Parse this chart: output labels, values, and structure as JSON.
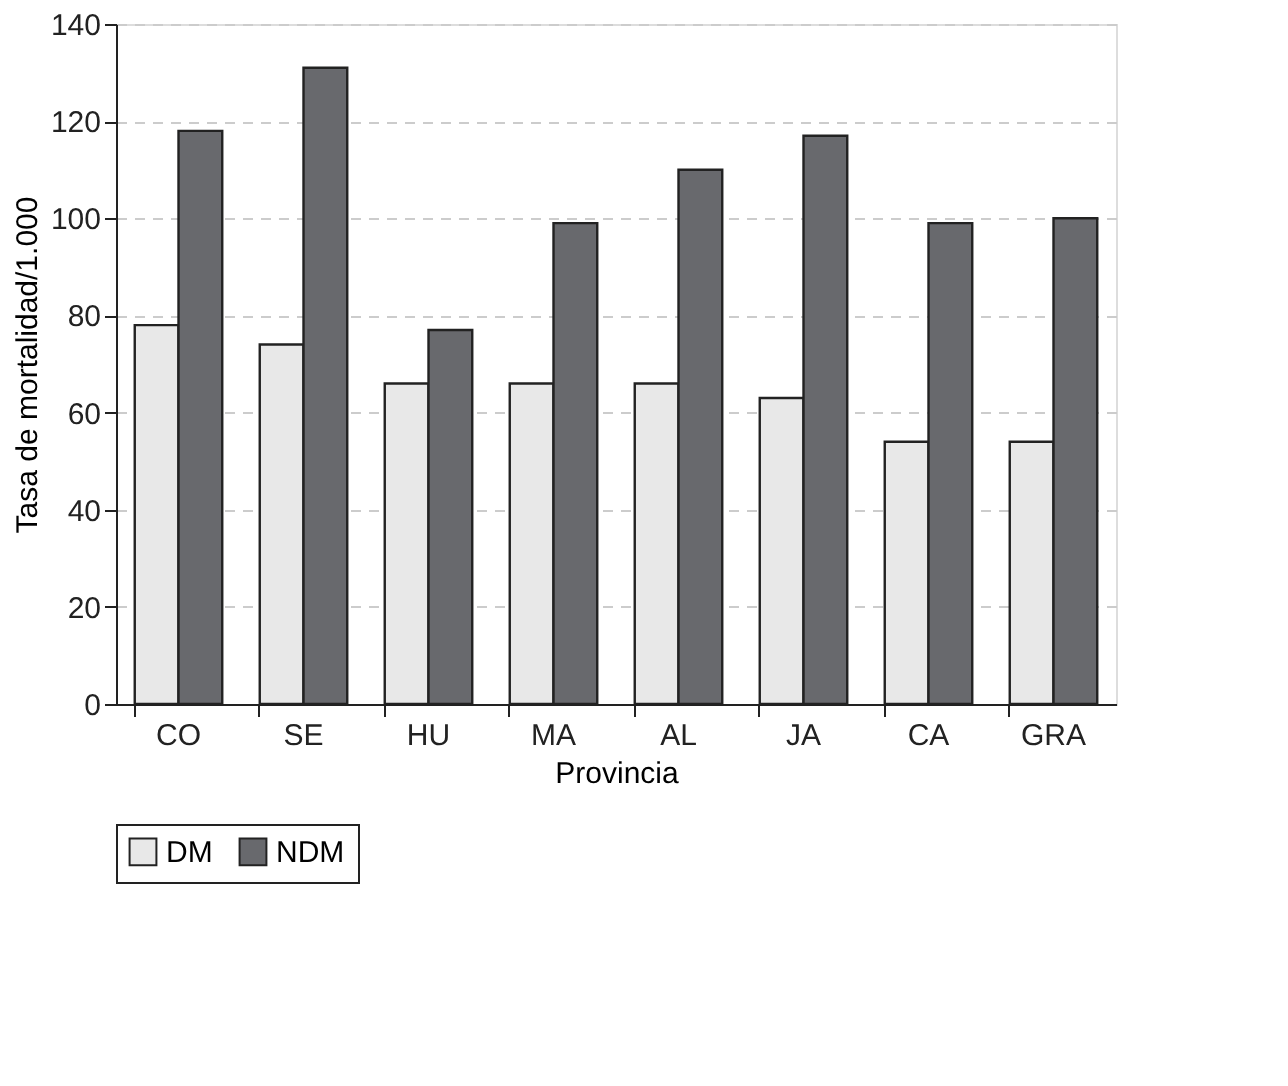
{
  "chart_data": {
    "type": "bar",
    "xlabel": "Provincia",
    "ylabel": "Tasa de mortalidad/1.000",
    "categories": [
      "CO",
      "SE",
      "HU",
      "MA",
      "AL",
      "JA",
      "CA",
      "GRA"
    ],
    "series": [
      {
        "name": "DM",
        "color": "#e8e8e8",
        "values": [
          78,
          74,
          66,
          66,
          66,
          63,
          54,
          54
        ]
      },
      {
        "name": "NDM",
        "color": "#68696d",
        "values": [
          118,
          131,
          77,
          99,
          110,
          117,
          99,
          100
        ]
      }
    ],
    "ylim": [
      0,
      140
    ],
    "yticks": [
      0,
      20,
      40,
      60,
      80,
      100,
      120,
      140
    ],
    "grid": "y",
    "legend": "bottom"
  }
}
